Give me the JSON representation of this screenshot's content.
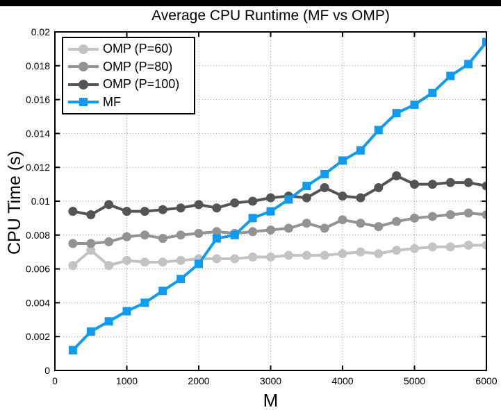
{
  "top_bar_color": "#000000",
  "chart_data": {
    "type": "line",
    "title": "Average CPU Runtime (MF vs OMP)",
    "xlabel": "M",
    "ylabel": "CPU Time (s)",
    "xlim": [
      0,
      6000
    ],
    "ylim": [
      0,
      0.02
    ],
    "x_ticks": [
      0,
      1000,
      2000,
      3000,
      4000,
      5000,
      6000
    ],
    "y_ticks": [
      0,
      0.002,
      0.004,
      0.006,
      0.008,
      0.01,
      0.012,
      0.014,
      0.016,
      0.018,
      0.02
    ],
    "grid": "dotted",
    "grid_color": "#9a9a9a",
    "axis_color": "#000000",
    "legend_position": "top-left",
    "x": [
      250,
      500,
      750,
      1000,
      1250,
      1500,
      1750,
      2000,
      2250,
      2500,
      2750,
      3000,
      3250,
      3500,
      3750,
      4000,
      4250,
      4500,
      4750,
      5000,
      5250,
      5500,
      5750,
      6000
    ],
    "series": [
      {
        "name": "OMP (P=60)",
        "color": "#c3c3c3",
        "marker": "circle",
        "values": [
          0.0062,
          0.0071,
          0.0062,
          0.0065,
          0.0064,
          0.0064,
          0.0065,
          0.0066,
          0.0066,
          0.0066,
          0.0067,
          0.0067,
          0.0068,
          0.0068,
          0.0068,
          0.0069,
          0.007,
          0.0069,
          0.0071,
          0.0072,
          0.0073,
          0.0073,
          0.0074,
          0.0074
        ]
      },
      {
        "name": "OMP (P=80)",
        "color": "#939393",
        "marker": "circle",
        "values": [
          0.0075,
          0.0075,
          0.0076,
          0.0079,
          0.008,
          0.0078,
          0.008,
          0.0081,
          0.0082,
          0.0081,
          0.0082,
          0.0083,
          0.0084,
          0.0087,
          0.0084,
          0.0089,
          0.0087,
          0.0085,
          0.0088,
          0.009,
          0.0091,
          0.0092,
          0.0093,
          0.0092
        ]
      },
      {
        "name": "OMP (P=100)",
        "color": "#545454",
        "marker": "circle",
        "values": [
          0.0094,
          0.0092,
          0.0098,
          0.0094,
          0.0094,
          0.0095,
          0.0096,
          0.0098,
          0.0096,
          0.0099,
          0.01,
          0.0102,
          0.0103,
          0.0102,
          0.0108,
          0.0103,
          0.0102,
          0.0108,
          0.0115,
          0.011,
          0.011,
          0.0111,
          0.0111,
          0.0109
        ]
      },
      {
        "name": "MF",
        "color": "#0f9bf0",
        "marker": "square",
        "values": [
          0.0012,
          0.0023,
          0.0029,
          0.0035,
          0.004,
          0.0047,
          0.0054,
          0.0063,
          0.0078,
          0.008,
          0.009,
          0.0094,
          0.0101,
          0.0109,
          0.0116,
          0.0124,
          0.013,
          0.0142,
          0.0152,
          0.0157,
          0.0164,
          0.0174,
          0.0181,
          0.0194
        ]
      }
    ]
  }
}
